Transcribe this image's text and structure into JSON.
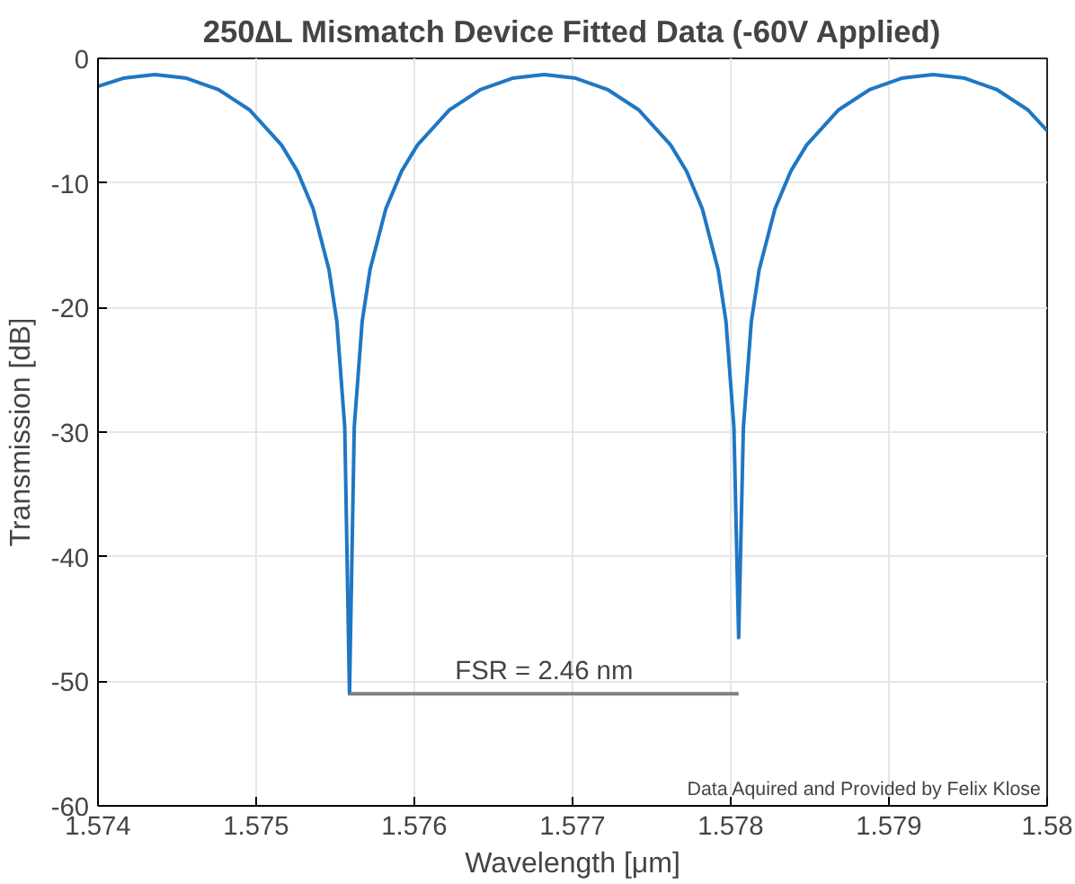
{
  "chart_data": {
    "type": "line",
    "title": "250∆L Mismatch Device Fitted Data (-60V Applied)",
    "xlabel": "Wavelength [μm]",
    "ylabel": "Transmission [dB]",
    "xlim": [
      1.574,
      1.58
    ],
    "ylim": [
      -60,
      0
    ],
    "xticks": [
      1.574,
      1.575,
      1.576,
      1.577,
      1.578,
      1.579,
      1.58
    ],
    "yticks": [
      -60,
      -50,
      -40,
      -30,
      -20,
      -10,
      0
    ],
    "grid": true,
    "marker": "none",
    "line_style": "solid",
    "series": [
      {
        "color": "#1f77c4",
        "x": [
          1.574,
          1.57416,
          1.57436,
          1.57456,
          1.57476,
          1.57496,
          1.57516,
          1.57526,
          1.57536,
          1.57546,
          1.57551,
          1.57556,
          1.57559,
          1.57562,
          1.57567,
          1.57572,
          1.57582,
          1.57592,
          1.57602,
          1.57622,
          1.57642,
          1.57662,
          1.57682,
          1.57702,
          1.57722,
          1.57742,
          1.57762,
          1.57772,
          1.57782,
          1.57792,
          1.57797,
          1.57802,
          1.57805,
          1.57808,
          1.57813,
          1.57818,
          1.57828,
          1.57838,
          1.57848,
          1.57868,
          1.57888,
          1.57908,
          1.57928,
          1.57948,
          1.57968,
          1.57988,
          1.58
        ],
        "values": [
          -2.25,
          -1.59,
          -1.3,
          -1.59,
          -2.49,
          -4.15,
          -6.95,
          -9.04,
          -12.06,
          -16.94,
          -21.13,
          -29.6,
          -51.0,
          -29.6,
          -21.13,
          -16.94,
          -12.06,
          -9.04,
          -6.95,
          -4.15,
          -2.49,
          -1.59,
          -1.3,
          -1.59,
          -2.49,
          -4.15,
          -6.95,
          -9.04,
          -12.06,
          -16.94,
          -21.13,
          -29.6,
          -46.5,
          -29.6,
          -21.13,
          -16.94,
          -12.06,
          -9.04,
          -6.95,
          -4.15,
          -2.49,
          -1.59,
          -1.3,
          -1.59,
          -2.49,
          -4.15,
          -5.8
        ]
      },
      {
        "color": "#808080",
        "x": [
          1.57559,
          1.57805
        ],
        "values": [
          -51.0,
          -51.0
        ]
      }
    ],
    "annotations": [
      {
        "text": "FSR = 2.46 nm",
        "x": 1.57682,
        "y": -51
      },
      "Data Aquired and Provided by Felix Klose"
    ]
  }
}
